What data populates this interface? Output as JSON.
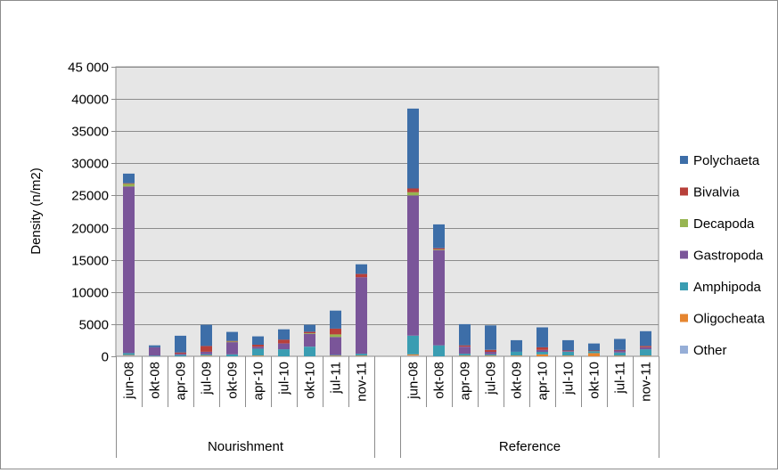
{
  "chart_data": {
    "type": "bar",
    "stacked": true,
    "ylabel": "Density (n/m2)",
    "ylim": [
      0,
      45000
    ],
    "yticks": [
      0,
      5000,
      10000,
      15000,
      20000,
      25000,
      30000,
      35000,
      40000,
      45000
    ],
    "ytick_labels": [
      "0",
      "5000",
      "10000",
      "15000",
      "20000",
      "25000",
      "30000",
      "35000",
      "40000",
      "45 000"
    ],
    "grid": "horizontal",
    "legend_position": "right",
    "groups": [
      {
        "label": "Nourishment",
        "categories": [
          "jun-08",
          "okt-08",
          "apr-09",
          "jul-09",
          "okt-09",
          "apr-10",
          "jul-10",
          "okt-10",
          "jul-11",
          "nov-11"
        ]
      },
      {
        "label": "Reference",
        "categories": [
          "jun-08",
          "okt-08",
          "apr-09",
          "jul-09",
          "okt-09",
          "apr-10",
          "jul-10",
          "okt-10",
          "jul-11",
          "nov-11"
        ]
      }
    ],
    "colors": {
      "Polychaeta": "#3d6ea8",
      "Bivalvia": "#b8403a",
      "Decapoda": "#97b551",
      "Gastropoda": "#7a5599",
      "Amphipoda": "#3a9db2",
      "Oligocheata": "#e6852f",
      "Other": "#96aed7"
    },
    "legend_order": [
      "Polychaeta",
      "Bivalvia",
      "Decapoda",
      "Gastropoda",
      "Amphipoda",
      "Oligocheata",
      "Other"
    ],
    "series": [
      {
        "name": "Other",
        "values": [
          100,
          0,
          0,
          0,
          0,
          0,
          0,
          0,
          0,
          0,
          100,
          0,
          0,
          0,
          0,
          0,
          0,
          0,
          0,
          0
        ]
      },
      {
        "name": "Oligocheata",
        "values": [
          100,
          0,
          0,
          100,
          0,
          100,
          0,
          0,
          100,
          100,
          200,
          0,
          100,
          100,
          100,
          300,
          100,
          500,
          100,
          100
        ]
      },
      {
        "name": "Amphipoda",
        "values": [
          300,
          100,
          200,
          200,
          300,
          1100,
          1100,
          1500,
          100,
          300,
          2900,
          1700,
          300,
          200,
          600,
          400,
          600,
          300,
          500,
          1000
        ]
      },
      {
        "name": "Gastropoda",
        "values": [
          25900,
          1300,
          200,
          400,
          1900,
          300,
          900,
          2000,
          2800,
          11900,
          21800,
          14800,
          1100,
          400,
          0,
          300,
          100,
          0,
          300,
          300
        ]
      },
      {
        "name": "Decapoda",
        "values": [
          400,
          0,
          0,
          0,
          100,
          0,
          0,
          100,
          400,
          0,
          500,
          100,
          0,
          0,
          0,
          0,
          0,
          0,
          0,
          0
        ]
      },
      {
        "name": "Bivalvia",
        "values": [
          100,
          0,
          200,
          900,
          100,
          300,
          600,
          200,
          900,
          500,
          600,
          200,
          200,
          300,
          0,
          400,
          100,
          100,
          100,
          200
        ]
      },
      {
        "name": "Polychaeta",
        "values": [
          1500,
          300,
          2600,
          3300,
          1400,
          1300,
          1600,
          1100,
          2800,
          1500,
          12400,
          3700,
          3300,
          3800,
          1800,
          3100,
          1600,
          1100,
          1700,
          2300
        ]
      }
    ]
  }
}
